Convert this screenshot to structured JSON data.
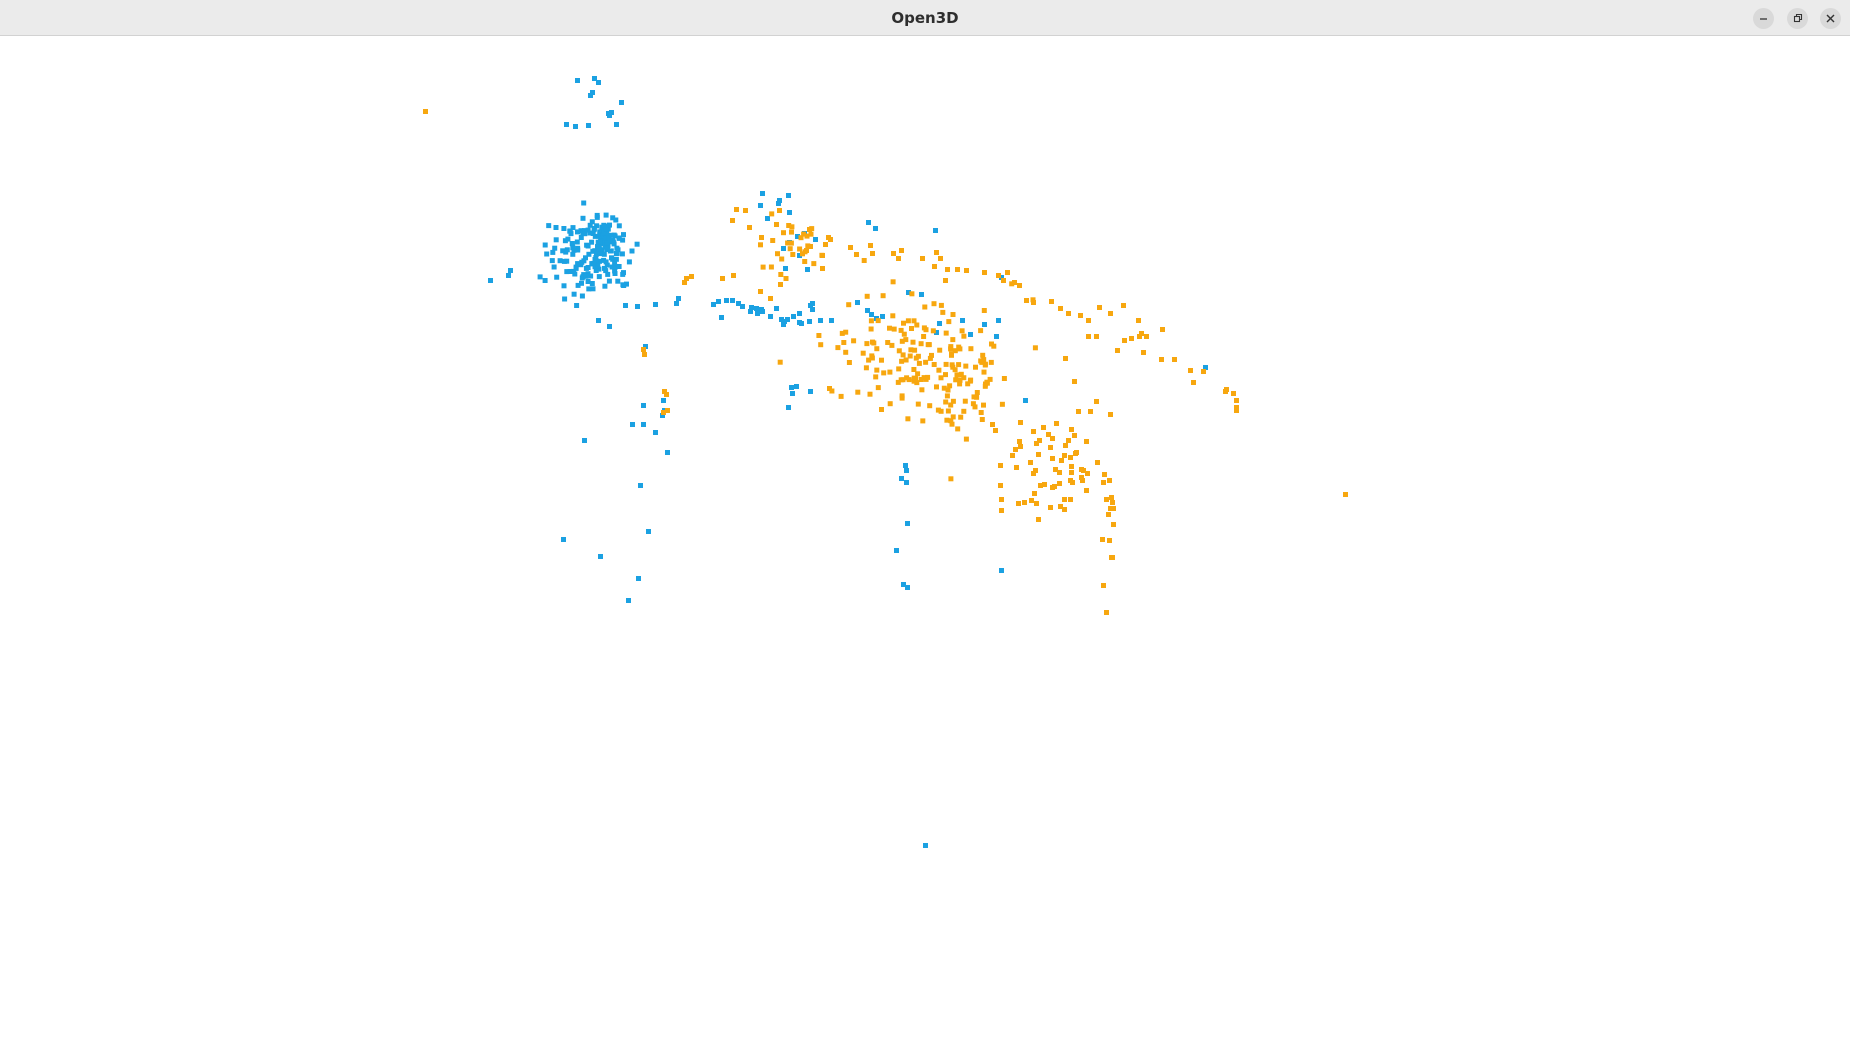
{
  "window": {
    "title": "Open3D",
    "controls": {
      "minimize": "minimize-icon",
      "maximize": "restore-icon",
      "close": "close-icon"
    }
  },
  "point_cloud": {
    "background": "#ffffff",
    "colors": {
      "cluster_a": "#1ba1e2",
      "cluster_b": "#f7a70f"
    }
  }
}
